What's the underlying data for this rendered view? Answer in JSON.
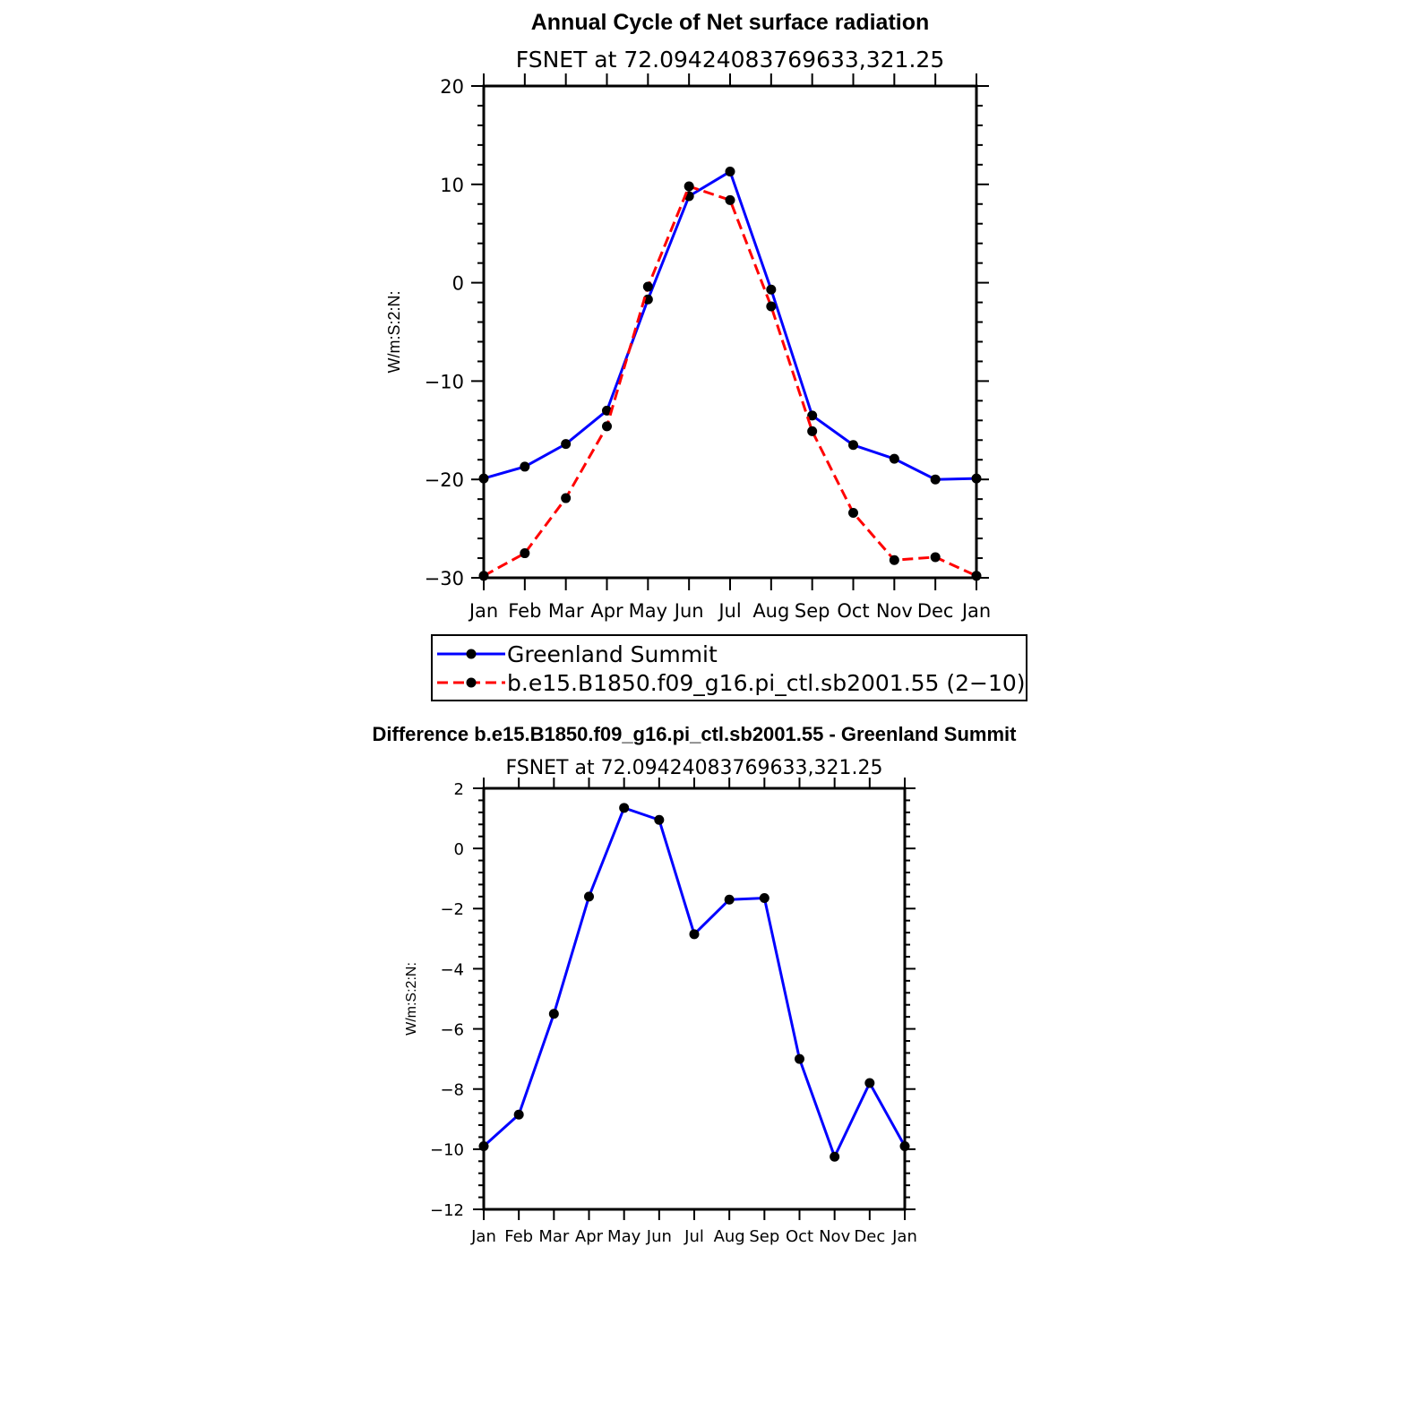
{
  "chart_data": [
    {
      "type": "line",
      "title": "Annual Cycle of Net surface radiation",
      "subtitle": "FSNET at 72.09424083769633,321.25",
      "ylabel": "W/m:S:2:N:",
      "xlabel": "",
      "categories": [
        "Jan",
        "Feb",
        "Mar",
        "Apr",
        "May",
        "Jun",
        "Jul",
        "Aug",
        "Sep",
        "Oct",
        "Nov",
        "Dec",
        "Jan"
      ],
      "ylim": [
        -30,
        20
      ],
      "yticks": [
        20,
        10,
        0,
        -10,
        -20,
        -30
      ],
      "ytick_labels": [
        "20",
        "10",
        "0",
        "−10",
        "−20",
        "−30"
      ],
      "series": [
        {
          "name": "Greenland Summit",
          "color": "#0000ff",
          "dash": "solid",
          "values": [
            -19.9,
            -18.7,
            -16.4,
            -13.0,
            -1.7,
            8.8,
            11.3,
            -0.7,
            -13.5,
            -16.5,
            -17.9,
            -20.0,
            -19.9
          ]
        },
        {
          "name": "b.e15.B1850.f09_g16.pi_ctl.sb2001.55 (2−10)",
          "color": "#ff0000",
          "dash": "dashed",
          "values": [
            -29.8,
            -27.5,
            -21.9,
            -14.6,
            -0.4,
            9.8,
            8.4,
            -2.4,
            -15.1,
            -23.4,
            -28.2,
            -27.9,
            -29.8
          ]
        }
      ],
      "legend": "below"
    },
    {
      "type": "line",
      "title": "Difference b.e15.B1850.f09_g16.pi_ctl.sb2001.55 - Greenland Summit",
      "subtitle": "FSNET at 72.09424083769633,321.25",
      "ylabel": "W/m:S:2:N:",
      "xlabel": "",
      "categories": [
        "Jan",
        "Feb",
        "Mar",
        "Apr",
        "May",
        "Jun",
        "Jul",
        "Aug",
        "Sep",
        "Oct",
        "Nov",
        "Dec",
        "Jan"
      ],
      "ylim": [
        -12,
        2
      ],
      "yticks": [
        2,
        0,
        -2,
        -4,
        -6,
        -8,
        -10,
        -12
      ],
      "ytick_labels": [
        "2",
        "0",
        "−2",
        "−4",
        "−6",
        "−8",
        "−10",
        "−12"
      ],
      "series": [
        {
          "name": "Difference",
          "color": "#0000ff",
          "dash": "solid",
          "values": [
            -9.9,
            -8.85,
            -5.5,
            -1.6,
            1.35,
            0.95,
            -2.85,
            -1.7,
            -1.65,
            -7.0,
            -10.25,
            -7.8,
            -9.9
          ]
        }
      ]
    }
  ]
}
